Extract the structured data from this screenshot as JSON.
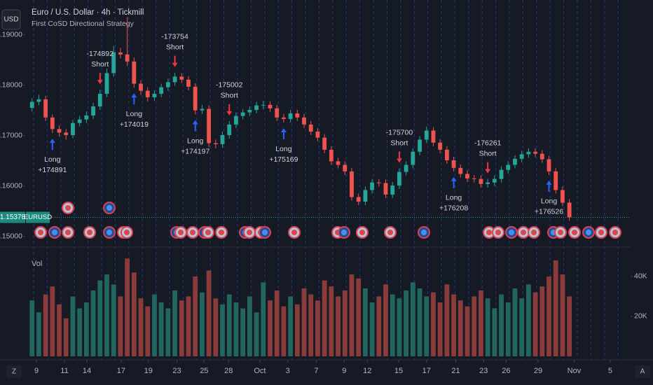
{
  "header": {
    "currency": "USD",
    "symbol_title": "Euro / U.S. Dollar · 4h · Tickmill",
    "indicator": "First CoSD Directional Strategy",
    "symbol": "EURUSD",
    "left_button": "Z",
    "right_button": "A"
  },
  "chart_data": [
    {
      "type": "candlestick",
      "up_color": "#26a69a",
      "down_color": "#ef5350",
      "xlim": [
        -1,
        88
      ],
      "xticks": [
        {
          "value": 0.65,
          "label": "9"
        },
        {
          "value": 4.77,
          "label": "11"
        },
        {
          "value": 8.06,
          "label": "14"
        },
        {
          "value": 13.1,
          "label": "17"
        },
        {
          "value": 17.1,
          "label": "19"
        },
        {
          "value": 21.3,
          "label": "23"
        },
        {
          "value": 25.3,
          "label": "25"
        },
        {
          "value": 28.9,
          "label": "28"
        },
        {
          "value": 33.5,
          "label": "Oct"
        },
        {
          "value": 37.6,
          "label": "3"
        },
        {
          "value": 41.8,
          "label": "7"
        },
        {
          "value": 45.9,
          "label": "9"
        },
        {
          "value": 49.3,
          "label": "12"
        },
        {
          "value": 53.9,
          "label": "15"
        },
        {
          "value": 58,
          "label": "17"
        },
        {
          "value": 62.3,
          "label": "21"
        },
        {
          "value": 66.4,
          "label": "23"
        },
        {
          "value": 69.7,
          "label": "26"
        },
        {
          "value": 74.4,
          "label": "29"
        },
        {
          "value": 79.7,
          "label": "Nov"
        },
        {
          "value": 85,
          "label": "5"
        }
      ],
      "ylim": [
        1.1483,
        1.1969
      ],
      "yticks": [
        {
          "value": 1.15,
          "label": "1.15000"
        },
        {
          "value": 1.16,
          "label": "1.16000"
        },
        {
          "value": 1.17,
          "label": "1.17000"
        },
        {
          "value": 1.18,
          "label": "1.18000"
        },
        {
          "value": 1.19,
          "label": "1.19000"
        }
      ],
      "last_price": 1.15378,
      "open": [
        1.1755,
        1.1767,
        1.1772,
        1.1736,
        1.1713,
        1.1706,
        1.1701,
        1.1725,
        1.1732,
        1.174,
        1.1758,
        1.1783,
        1.1824,
        1.1865,
        1.1861,
        1.1847,
        1.1803,
        1.1789,
        1.1776,
        1.1783,
        1.1796,
        1.1806,
        1.1817,
        1.1811,
        1.1797,
        1.175,
        1.1753,
        1.1685,
        1.1683,
        1.1701,
        1.1722,
        1.1739,
        1.1746,
        1.1751,
        1.176,
        1.1761,
        1.1754,
        1.1736,
        1.1733,
        1.1744,
        1.1736,
        1.1722,
        1.1708,
        1.1696,
        1.1672,
        1.1649,
        1.1642,
        1.1629,
        1.1578,
        1.1569,
        1.1592,
        1.1607,
        1.1606,
        1.1583,
        1.1601,
        1.1628,
        1.1642,
        1.1668,
        1.1692,
        1.171,
        1.1686,
        1.1672,
        1.1651,
        1.1636,
        1.1624,
        1.1615,
        1.1614,
        1.1604,
        1.1607,
        1.1614,
        1.1632,
        1.1642,
        1.1654,
        1.1663,
        1.1668,
        1.1664,
        1.1653,
        1.1629,
        1.1592,
        1.1567
      ],
      "high": [
        1.1774,
        1.1781,
        1.1779,
        1.1742,
        1.172,
        1.1713,
        1.1731,
        1.1739,
        1.1748,
        1.1765,
        1.1791,
        1.1833,
        1.1878,
        1.1874,
        1.1935,
        1.1855,
        1.181,
        1.1796,
        1.179,
        1.1803,
        1.1813,
        1.1825,
        1.1824,
        1.1818,
        1.1804,
        1.1761,
        1.176,
        1.1692,
        1.1708,
        1.1729,
        1.1746,
        1.1753,
        1.1758,
        1.1767,
        1.1769,
        1.1768,
        1.1761,
        1.1743,
        1.1751,
        1.1751,
        1.1743,
        1.1729,
        1.1715,
        1.1703,
        1.1679,
        1.1656,
        1.1649,
        1.1636,
        1.1585,
        1.1599,
        1.1614,
        1.1614,
        1.1613,
        1.1608,
        1.1635,
        1.1649,
        1.1675,
        1.1699,
        1.1718,
        1.1717,
        1.1693,
        1.1679,
        1.1658,
        1.1643,
        1.1631,
        1.1622,
        1.1621,
        1.1614,
        1.1621,
        1.1639,
        1.1649,
        1.1661,
        1.167,
        1.1675,
        1.1675,
        1.1671,
        1.166,
        1.1636,
        1.1599,
        1.1574
      ],
      "low": [
        1.1748,
        1.176,
        1.1729,
        1.1705,
        1.1698,
        1.1692,
        1.1695,
        1.1718,
        1.1725,
        1.1733,
        1.1751,
        1.1776,
        1.1817,
        1.1853,
        1.1838,
        1.1795,
        1.1781,
        1.1768,
        1.1769,
        1.1776,
        1.1789,
        1.1799,
        1.1804,
        1.179,
        1.1742,
        1.1743,
        1.1677,
        1.1675,
        1.1676,
        1.1694,
        1.1715,
        1.1732,
        1.1739,
        1.1744,
        1.1752,
        1.1747,
        1.1729,
        1.1726,
        1.1726,
        1.1729,
        1.1715,
        1.1701,
        1.1689,
        1.1665,
        1.1642,
        1.1635,
        1.1622,
        1.1571,
        1.1562,
        1.1562,
        1.1585,
        1.1599,
        1.1576,
        1.1576,
        1.1594,
        1.1621,
        1.1635,
        1.1661,
        1.1685,
        1.1679,
        1.1665,
        1.1644,
        1.1629,
        1.1617,
        1.1608,
        1.1607,
        1.1597,
        1.1597,
        1.16,
        1.1607,
        1.1625,
        1.1635,
        1.1647,
        1.1656,
        1.1657,
        1.1646,
        1.1622,
        1.1585,
        1.156,
        1.1531
      ],
      "close": [
        1.1767,
        1.1772,
        1.1736,
        1.1713,
        1.1706,
        1.1701,
        1.1725,
        1.1732,
        1.174,
        1.1758,
        1.1783,
        1.1824,
        1.1865,
        1.1861,
        1.1847,
        1.1803,
        1.1789,
        1.1776,
        1.1783,
        1.1796,
        1.1806,
        1.1817,
        1.1811,
        1.1797,
        1.175,
        1.1753,
        1.1685,
        1.1683,
        1.1701,
        1.1722,
        1.1739,
        1.1746,
        1.1751,
        1.176,
        1.1761,
        1.1754,
        1.1736,
        1.1733,
        1.1744,
        1.1736,
        1.1722,
        1.1708,
        1.1696,
        1.1672,
        1.1649,
        1.1642,
        1.1629,
        1.1578,
        1.1569,
        1.1592,
        1.1607,
        1.1606,
        1.1583,
        1.1601,
        1.1628,
        1.1642,
        1.1668,
        1.1692,
        1.171,
        1.1686,
        1.1672,
        1.1651,
        1.1636,
        1.1624,
        1.1615,
        1.1614,
        1.1604,
        1.1607,
        1.1614,
        1.1632,
        1.1642,
        1.1654,
        1.1663,
        1.1668,
        1.1664,
        1.1653,
        1.1629,
        1.1592,
        1.1567,
        1.1538
      ],
      "long_color": "#2962ff",
      "short_color": "#f23645",
      "signals": [
        {
          "index": 3,
          "side": "Long",
          "amount": "+174891"
        },
        {
          "index": 10,
          "side": "Short",
          "amount": "-174892"
        },
        {
          "index": 15,
          "side": "Long",
          "amount": "+174019"
        },
        {
          "index": 21,
          "side": "Short",
          "amount": "-173754"
        },
        {
          "index": 24,
          "side": "Long",
          "amount": "+174197"
        },
        {
          "index": 29,
          "side": "Short",
          "amount": "-175002"
        },
        {
          "index": 37,
          "side": "Long",
          "amount": "+175169"
        },
        {
          "index": 54,
          "side": "Short",
          "amount": "-175700"
        },
        {
          "index": 62,
          "side": "Long",
          "amount": "+176208"
        },
        {
          "index": 67,
          "side": "Short",
          "amount": "-176261"
        },
        {
          "index": 76,
          "side": "Long",
          "amount": "+176526"
        }
      ]
    },
    {
      "type": "bar",
      "title": "Vol",
      "up_color": "#22675f",
      "down_color": "#8c3b3b",
      "ylim": [
        0,
        54000
      ],
      "yticks": [
        {
          "value": 20000,
          "label": "20K"
        },
        {
          "value": 40000,
          "label": "40K"
        }
      ],
      "values": [
        28000,
        22000,
        31000,
        35000,
        26000,
        19000,
        30000,
        24000,
        27000,
        33000,
        38000,
        41000,
        36000,
        30000,
        49000,
        42000,
        29000,
        25000,
        31000,
        27000,
        24000,
        33000,
        28000,
        30000,
        40000,
        32000,
        43000,
        29000,
        26000,
        31000,
        27000,
        24000,
        30000,
        22000,
        37000,
        28000,
        33000,
        25000,
        30000,
        26000,
        34000,
        31000,
        28000,
        38000,
        35000,
        30000,
        33000,
        41000,
        39000,
        34000,
        27000,
        30000,
        36000,
        31000,
        29000,
        33000,
        37000,
        34000,
        30000,
        32000,
        27000,
        36000,
        31000,
        28000,
        25000,
        30000,
        33000,
        29000,
        24000,
        31000,
        27000,
        34000,
        29000,
        36000,
        32000,
        35000,
        40000,
        48000,
        41000,
        30000
      ]
    }
  ]
}
